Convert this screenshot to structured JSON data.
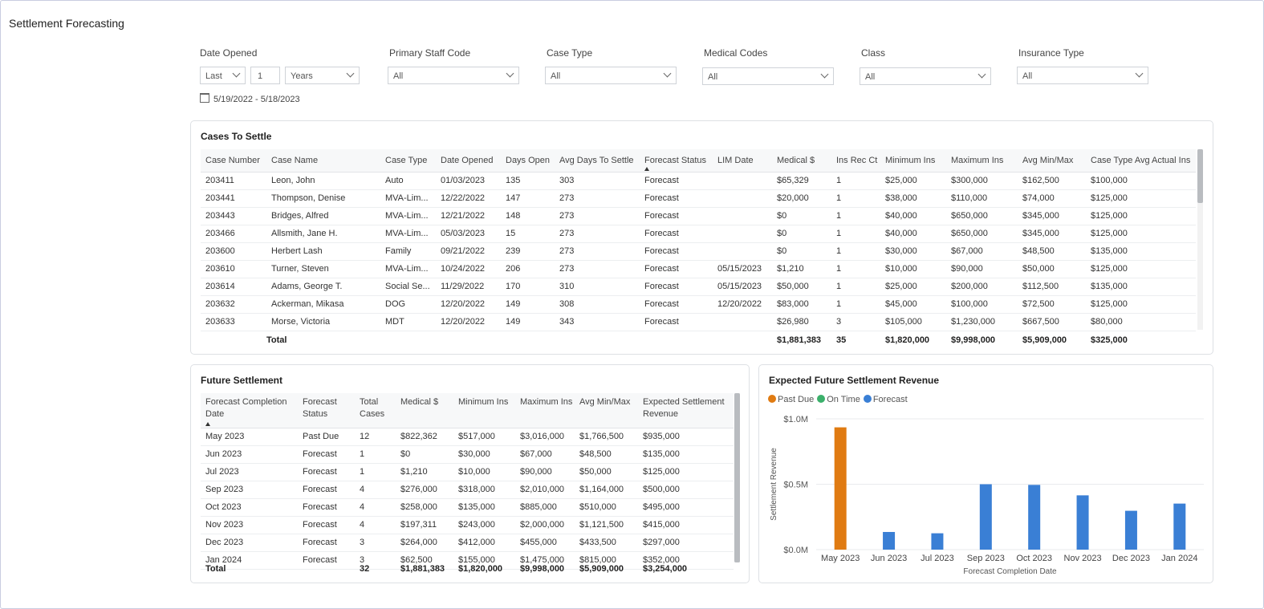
{
  "app": {
    "title": "Settlement Forecasting"
  },
  "filters": {
    "date_opened": {
      "label": "Date Opened",
      "period": "Last",
      "amount": "1",
      "unit": "Years",
      "range": "5/19/2022 - 5/18/2023"
    },
    "primary_staff_code": {
      "label": "Primary Staff Code",
      "value": "All"
    },
    "case_type": {
      "label": "Case Type",
      "value": "All"
    },
    "medical_codes": {
      "label": "Medical Codes",
      "value": "All"
    },
    "class": {
      "label": "Class",
      "value": "All"
    },
    "insurance_type": {
      "label": "Insurance Type",
      "value": "All"
    }
  },
  "cases": {
    "title": "Cases To Settle",
    "columns": [
      "Case Number",
      "Case Name",
      "Case Type",
      "Date Opened",
      "Days Open",
      "Avg Days To Settle",
      "Forecast Status",
      "LIM Date",
      "Medical $",
      "Ins Rec Ct",
      "Minimum Ins",
      "Maximum Ins",
      "Avg Min/Max",
      "Case Type Avg Actual Ins"
    ],
    "rows": [
      [
        "203411",
        "Leon, John",
        "Auto",
        "01/03/2023",
        "135",
        "303",
        "Forecast",
        "",
        "$65,329",
        "1",
        "$25,000",
        "$300,000",
        "$162,500",
        "$100,000"
      ],
      [
        "203441",
        "Thompson, Denise",
        "MVA-Lim...",
        "12/22/2022",
        "147",
        "273",
        "Forecast",
        "",
        "$20,000",
        "1",
        "$38,000",
        "$110,000",
        "$74,000",
        "$125,000"
      ],
      [
        "203443",
        "Bridges, Alfred",
        "MVA-Lim...",
        "12/21/2022",
        "148",
        "273",
        "Forecast",
        "",
        "$0",
        "1",
        "$40,000",
        "$650,000",
        "$345,000",
        "$125,000"
      ],
      [
        "203466",
        "Allsmith, Jane H.",
        "MVA-Lim...",
        "05/03/2023",
        "15",
        "273",
        "Forecast",
        "",
        "$0",
        "1",
        "$40,000",
        "$650,000",
        "$345,000",
        "$125,000"
      ],
      [
        "203600",
        "Herbert Lash",
        "Family",
        "09/21/2022",
        "239",
        "273",
        "Forecast",
        "",
        "$0",
        "1",
        "$30,000",
        "$67,000",
        "$48,500",
        "$135,000"
      ],
      [
        "203610",
        "Turner, Steven",
        "MVA-Lim...",
        "10/24/2022",
        "206",
        "273",
        "Forecast",
        "05/15/2023",
        "$1,210",
        "1",
        "$10,000",
        "$90,000",
        "$50,000",
        "$125,000"
      ],
      [
        "203614",
        "Adams, George T.",
        "Social Se...",
        "11/29/2022",
        "170",
        "310",
        "Forecast",
        "05/15/2023",
        "$50,000",
        "1",
        "$25,000",
        "$200,000",
        "$112,500",
        "$135,000"
      ],
      [
        "203632",
        "Ackerman, Mikasa",
        "DOG",
        "12/20/2022",
        "149",
        "308",
        "Forecast",
        "12/20/2022",
        "$83,000",
        "1",
        "$45,000",
        "$100,000",
        "$72,500",
        "$125,000"
      ],
      [
        "203633",
        "Morse, Victoria",
        "MDT",
        "12/20/2022",
        "149",
        "343",
        "Forecast",
        "",
        "$26,980",
        "3",
        "$105,000",
        "$1,230,000",
        "$667,500",
        "$80,000"
      ]
    ],
    "total": {
      "label": "Total",
      "medical": "$1,881,383",
      "ins_rec_ct": "35",
      "min_ins": "$1,820,000",
      "max_ins": "$9,998,000",
      "avg_min_max": "$5,909,000",
      "case_type_avg": "$325,000"
    }
  },
  "future": {
    "title": "Future Settlement",
    "columns": [
      "Forecast Completion Date",
      "Forecast Status",
      "Total Cases",
      "Medical $",
      "Minimum Ins",
      "Maximum Ins",
      "Avg Min/Max",
      "Expected Settlement Revenue"
    ],
    "rows": [
      [
        "May 2023",
        "Past Due",
        "12",
        "$822,362",
        "$517,000",
        "$3,016,000",
        "$1,766,500",
        "$935,000"
      ],
      [
        "Jun 2023",
        "Forecast",
        "1",
        "$0",
        "$30,000",
        "$67,000",
        "$48,500",
        "$135,000"
      ],
      [
        "Jul 2023",
        "Forecast",
        "1",
        "$1,210",
        "$10,000",
        "$90,000",
        "$50,000",
        "$125,000"
      ],
      [
        "Sep 2023",
        "Forecast",
        "4",
        "$276,000",
        "$318,000",
        "$2,010,000",
        "$1,164,000",
        "$500,000"
      ],
      [
        "Oct 2023",
        "Forecast",
        "4",
        "$258,000",
        "$135,000",
        "$885,000",
        "$510,000",
        "$495,000"
      ],
      [
        "Nov 2023",
        "Forecast",
        "4",
        "$197,311",
        "$243,000",
        "$2,000,000",
        "$1,121,500",
        "$415,000"
      ],
      [
        "Dec 2023",
        "Forecast",
        "3",
        "$264,000",
        "$412,000",
        "$455,000",
        "$433,500",
        "$297,000"
      ],
      [
        "Jan 2024",
        "Forecast",
        "3",
        "$62,500",
        "$155,000",
        "$1,475,000",
        "$815,000",
        "$352,000"
      ]
    ],
    "total": {
      "label": "Total",
      "total_cases": "32",
      "medical": "$1,881,383",
      "min_ins": "$1,820,000",
      "max_ins": "$9,998,000",
      "avg_min_max": "$5,909,000",
      "expected": "$3,254,000"
    }
  },
  "chart_data": {
    "type": "bar",
    "title": "Expected Future Settlement Revenue",
    "xlabel": "Forecast Completion Date",
    "ylabel": "Settlement Revenue",
    "categories": [
      "May 2023",
      "Jun 2023",
      "Jul 2023",
      "Sep 2023",
      "Oct 2023",
      "Nov 2023",
      "Dec 2023",
      "Jan 2024"
    ],
    "legend": [
      {
        "name": "Past Due",
        "color": "#e07b12"
      },
      {
        "name": "On Time",
        "color": "#3bb06b"
      },
      {
        "name": "Forecast",
        "color": "#3a7fd5"
      }
    ],
    "values": [
      935000,
      135000,
      125000,
      500000,
      495000,
      415000,
      297000,
      352000
    ],
    "statuses": [
      "Past Due",
      "Forecast",
      "Forecast",
      "Forecast",
      "Forecast",
      "Forecast",
      "Forecast",
      "Forecast"
    ],
    "ylim": [
      0,
      1000000
    ],
    "yticks": [
      {
        "value": 0,
        "label": "$0.0M"
      },
      {
        "value": 500000,
        "label": "$0.5M"
      },
      {
        "value": 1000000,
        "label": "$1.0M"
      }
    ],
    "grid": true,
    "legend_position": "top-left"
  }
}
